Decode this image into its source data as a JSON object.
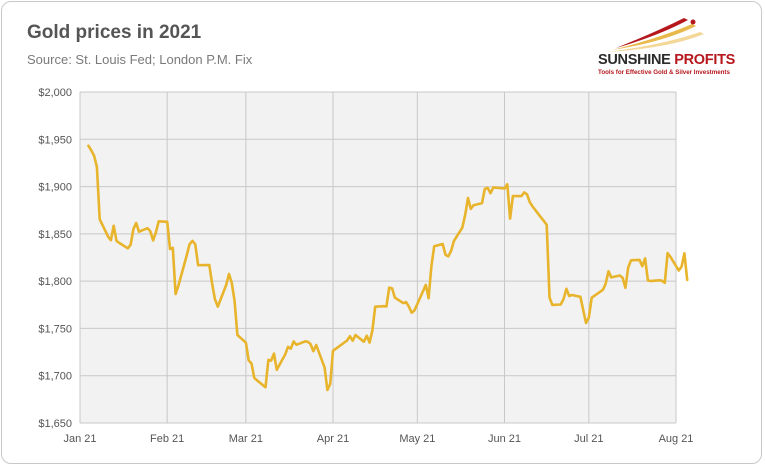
{
  "header": {
    "title": "Gold prices in 2021",
    "subtitle": "Source: St. Louis Fed; London P.M. Fix"
  },
  "logo": {
    "name_part1": "SUNSHINE",
    "name_part2": " PROFITS",
    "tagline": "Tools for Effective Gold & Silver Investments",
    "colors": {
      "red": "#b5171d",
      "gold": "#e8b84a",
      "dark": "#2b2b2b"
    }
  },
  "chart_data": {
    "type": "line",
    "title": "Gold prices in 2021",
    "subtitle": "Source: St. Louis Fed; London P.M. Fix",
    "xlabel": "",
    "ylabel": "",
    "ylim": [
      1650,
      2000
    ],
    "yticks": [
      1650,
      1700,
      1750,
      1800,
      1850,
      1900,
      1950,
      2000
    ],
    "ytick_labels": [
      "$1,650",
      "$1,700",
      "$1,750",
      "$1,800",
      "$1,850",
      "$1,900",
      "$1,950",
      "$2,000"
    ],
    "xlim": [
      "2021-01-01",
      "2021-08-01"
    ],
    "xticks": [
      "2021-01-01",
      "2021-02-01",
      "2021-03-01",
      "2021-04-01",
      "2021-05-01",
      "2021-06-01",
      "2021-07-01",
      "2021-08-01"
    ],
    "xtick_labels": [
      "Jan 21",
      "Feb 21",
      "Mar 21",
      "Apr 21",
      "May 21",
      "Jun 21",
      "Jul 21",
      "Aug 21"
    ],
    "grid": {
      "horizontal": true,
      "vertical": true,
      "color": "#c8c8c8"
    },
    "plot_background": "#f2f2f2",
    "series": [
      {
        "color": "#e8b42c",
        "points": [
          [
            "2021-01-04",
            1943.2
          ],
          [
            "2021-01-05",
            1938.4
          ],
          [
            "2021-01-06",
            1932.6
          ],
          [
            "2021-01-07",
            1920.7
          ],
          [
            "2021-01-08",
            1865.5
          ],
          [
            "2021-01-11",
            1847.0
          ],
          [
            "2021-01-12",
            1843.3
          ],
          [
            "2021-01-13",
            1858.5
          ],
          [
            "2021-01-14",
            1842.6
          ],
          [
            "2021-01-15",
            1840.3
          ],
          [
            "2021-01-18",
            1834.7
          ],
          [
            "2021-01-19",
            1838.4
          ],
          [
            "2021-01-20",
            1855.0
          ],
          [
            "2021-01-21",
            1861.5
          ],
          [
            "2021-01-22",
            1852.3
          ],
          [
            "2021-01-25",
            1856.0
          ],
          [
            "2021-01-26",
            1852.8
          ],
          [
            "2021-01-27",
            1843.1
          ],
          [
            "2021-01-28",
            1851.6
          ],
          [
            "2021-01-29",
            1863.3
          ],
          [
            "2021-02-01",
            1862.7
          ],
          [
            "2021-02-02",
            1834.0
          ],
          [
            "2021-02-03",
            1835.3
          ],
          [
            "2021-02-04",
            1786.3
          ],
          [
            "2021-02-05",
            1795.3
          ],
          [
            "2021-02-08",
            1827.5
          ],
          [
            "2021-02-09",
            1839.2
          ],
          [
            "2021-02-10",
            1842.5
          ],
          [
            "2021-02-11",
            1838.9
          ],
          [
            "2021-02-12",
            1816.9
          ],
          [
            "2021-02-15",
            1817.1
          ],
          [
            "2021-02-16",
            1817.0
          ],
          [
            "2021-02-17",
            1797.5
          ],
          [
            "2021-02-18",
            1781.0
          ],
          [
            "2021-02-19",
            1773.0
          ],
          [
            "2021-02-22",
            1796.0
          ],
          [
            "2021-02-23",
            1807.5
          ],
          [
            "2021-02-24",
            1798.0
          ],
          [
            "2021-02-25",
            1778.8
          ],
          [
            "2021-02-26",
            1743.0
          ],
          [
            "2021-03-01",
            1734.9
          ],
          [
            "2021-03-02",
            1716.1
          ],
          [
            "2021-03-03",
            1712.9
          ],
          [
            "2021-03-04",
            1697.6
          ],
          [
            "2021-03-05",
            1695.0
          ],
          [
            "2021-03-08",
            1687.7
          ],
          [
            "2021-03-09",
            1716.7
          ],
          [
            "2021-03-10",
            1716.0
          ],
          [
            "2021-03-11",
            1723.4
          ],
          [
            "2021-03-12",
            1706.3
          ],
          [
            "2021-03-15",
            1722.5
          ],
          [
            "2021-03-16",
            1730.5
          ],
          [
            "2021-03-17",
            1728.6
          ],
          [
            "2021-03-18",
            1736.3
          ],
          [
            "2021-03-19",
            1732.7
          ],
          [
            "2021-03-22",
            1736.3
          ],
          [
            "2021-03-23",
            1736.0
          ],
          [
            "2021-03-24",
            1733.5
          ],
          [
            "2021-03-25",
            1725.9
          ],
          [
            "2021-03-26",
            1732.5
          ],
          [
            "2021-03-29",
            1708.6
          ],
          [
            "2021-03-30",
            1684.9
          ],
          [
            "2021-03-31",
            1691.1
          ],
          [
            "2021-04-01",
            1726.3
          ],
          [
            "2021-04-06",
            1737.2
          ],
          [
            "2021-04-07",
            1741.8
          ],
          [
            "2021-04-08",
            1737.0
          ],
          [
            "2021-04-09",
            1743.0
          ],
          [
            "2021-04-12",
            1736.0
          ],
          [
            "2021-04-13",
            1742.3
          ],
          [
            "2021-04-14",
            1735.0
          ],
          [
            "2021-04-15",
            1748.0
          ],
          [
            "2021-04-16",
            1773.0
          ],
          [
            "2021-04-19",
            1773.5
          ],
          [
            "2021-04-20",
            1773.2
          ],
          [
            "2021-04-21",
            1793.2
          ],
          [
            "2021-04-22",
            1792.3
          ],
          [
            "2021-04-23",
            1782.5
          ],
          [
            "2021-04-26",
            1776.8
          ],
          [
            "2021-04-27",
            1777.8
          ],
          [
            "2021-04-28",
            1773.0
          ],
          [
            "2021-04-29",
            1766.6
          ],
          [
            "2021-04-30",
            1769.1
          ],
          [
            "2021-05-04",
            1796.0
          ],
          [
            "2021-05-05",
            1782.0
          ],
          [
            "2021-05-06",
            1815.9
          ],
          [
            "2021-05-07",
            1836.8
          ],
          [
            "2021-05-10",
            1839.3
          ],
          [
            "2021-05-11",
            1827.9
          ],
          [
            "2021-05-12",
            1826.2
          ],
          [
            "2021-05-13",
            1832.0
          ],
          [
            "2021-05-14",
            1842.4
          ],
          [
            "2021-05-17",
            1856.5
          ],
          [
            "2021-05-18",
            1870.2
          ],
          [
            "2021-05-19",
            1887.9
          ],
          [
            "2021-05-20",
            1876.4
          ],
          [
            "2021-05-21",
            1880.3
          ],
          [
            "2021-05-24",
            1882.5
          ],
          [
            "2021-05-25",
            1897.5
          ],
          [
            "2021-05-26",
            1898.7
          ],
          [
            "2021-05-27",
            1893.0
          ],
          [
            "2021-05-28",
            1899.1
          ],
          [
            "2021-06-01",
            1898.0
          ],
          [
            "2021-06-02",
            1902.4
          ],
          [
            "2021-06-03",
            1866.1
          ],
          [
            "2021-06-04",
            1890.0
          ],
          [
            "2021-06-07",
            1889.9
          ],
          [
            "2021-06-08",
            1893.8
          ],
          [
            "2021-06-09",
            1891.8
          ],
          [
            "2021-06-10",
            1883.5
          ],
          [
            "2021-06-11",
            1878.9
          ],
          [
            "2021-06-14",
            1867.2
          ],
          [
            "2021-06-15",
            1863.5
          ],
          [
            "2021-06-16",
            1859.6
          ],
          [
            "2021-06-17",
            1782.9
          ],
          [
            "2021-06-18",
            1774.9
          ],
          [
            "2021-06-21",
            1775.3
          ],
          [
            "2021-06-22",
            1780.9
          ],
          [
            "2021-06-23",
            1791.9
          ],
          [
            "2021-06-24",
            1784.3
          ],
          [
            "2021-06-25",
            1785.3
          ],
          [
            "2021-06-28",
            1783.4
          ],
          [
            "2021-06-29",
            1769.5
          ],
          [
            "2021-06-30",
            1755.7
          ],
          [
            "2021-07-01",
            1761.2
          ],
          [
            "2021-07-02",
            1782.5
          ],
          [
            "2021-07-06",
            1790.8
          ],
          [
            "2021-07-07",
            1797.4
          ],
          [
            "2021-07-08",
            1810.4
          ],
          [
            "2021-07-09",
            1804.0
          ],
          [
            "2021-07-12",
            1806.0
          ],
          [
            "2021-07-13",
            1803.5
          ],
          [
            "2021-07-14",
            1793.0
          ],
          [
            "2021-07-15",
            1814.4
          ],
          [
            "2021-07-16",
            1822.0
          ],
          [
            "2021-07-19",
            1822.5
          ],
          [
            "2021-07-20",
            1815.8
          ],
          [
            "2021-07-21",
            1824.0
          ],
          [
            "2021-07-22",
            1800.8
          ],
          [
            "2021-07-23",
            1800.0
          ],
          [
            "2021-07-26",
            1800.9
          ],
          [
            "2021-07-27",
            1800.5
          ],
          [
            "2021-07-28",
            1798.1
          ],
          [
            "2021-07-29",
            1829.6
          ],
          [
            "2021-07-30",
            1825.7
          ],
          [
            "2021-08-02",
            1811.3
          ],
          [
            "2021-08-03",
            1815.4
          ],
          [
            "2021-08-04",
            1829.4
          ],
          [
            "2021-08-05",
            1801.3
          ]
        ]
      }
    ]
  }
}
